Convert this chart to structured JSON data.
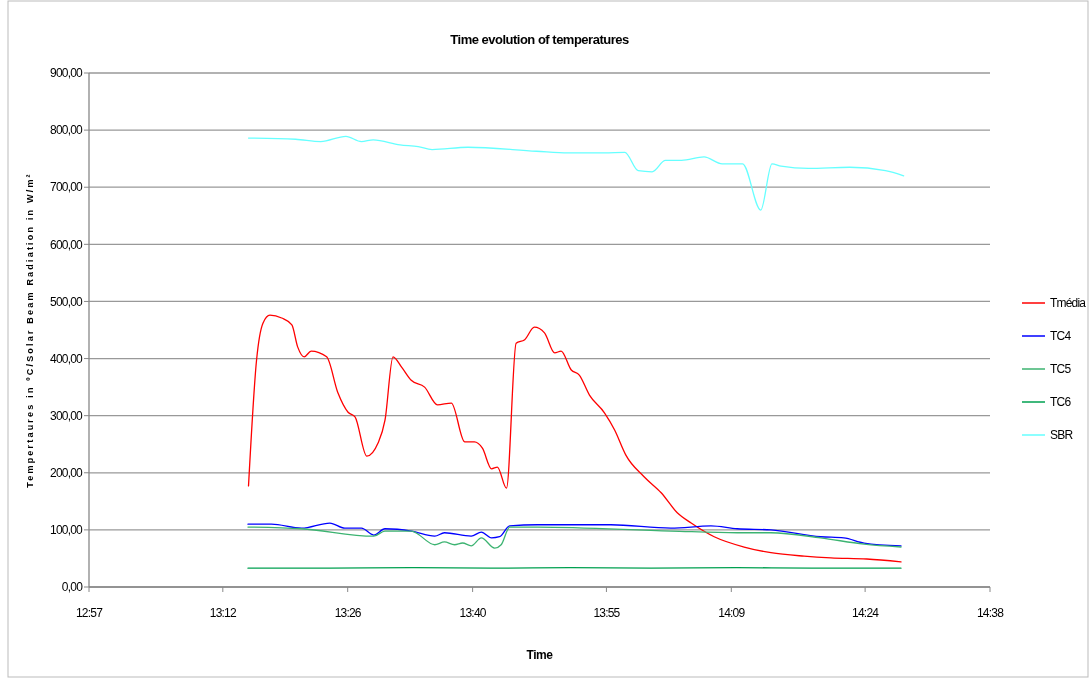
{
  "chart_data": {
    "type": "line",
    "title": "Time evolution of temperatures",
    "xlabel": "Time",
    "ylabel": "Tempertaures in ºC/Solar Beam Radiation in W/m²",
    "xlim": [
      12.95,
      14.6333
    ],
    "xticks": [
      {
        "value": 12.95,
        "label": "12:57"
      },
      {
        "value": 13.2,
        "label": "13:12"
      },
      {
        "value": 13.4333,
        "label": "13:26"
      },
      {
        "value": 13.6667,
        "label": "13:40"
      },
      {
        "value": 13.9167,
        "label": "13:55"
      },
      {
        "value": 14.15,
        "label": "14:09"
      },
      {
        "value": 14.4,
        "label": "14:24"
      },
      {
        "value": 14.6333,
        "label": "14:38"
      }
    ],
    "ylim": [
      0,
      900
    ],
    "yticks": [
      {
        "value": 0,
        "label": "0,00"
      },
      {
        "value": 100,
        "label": "100,00"
      },
      {
        "value": 200,
        "label": "200,00"
      },
      {
        "value": 300,
        "label": "300,00"
      },
      {
        "value": 400,
        "label": "400,00"
      },
      {
        "value": 500,
        "label": "500,00"
      },
      {
        "value": 600,
        "label": "600,00"
      },
      {
        "value": 700,
        "label": "700,00"
      },
      {
        "value": 800,
        "label": "800,00"
      },
      {
        "value": 900,
        "label": "900,00"
      }
    ],
    "grid": "y",
    "legend": "right",
    "series": [
      {
        "name": "Tmédia",
        "color": "#ff0000",
        "x": [
          13.248,
          13.263,
          13.275,
          13.288,
          13.31,
          13.329,
          13.34,
          13.352,
          13.365,
          13.394,
          13.415,
          13.434,
          13.447,
          13.469,
          13.49,
          13.503,
          13.518,
          13.534,
          13.552,
          13.577,
          13.601,
          13.627,
          13.652,
          13.67,
          13.685,
          13.702,
          13.713,
          13.73,
          13.748,
          13.764,
          13.782,
          13.801,
          13.82,
          13.832,
          13.851,
          13.866,
          13.885,
          13.913,
          13.932,
          13.953,
          13.987,
          14.019,
          14.049,
          14.075,
          14.118,
          14.174,
          14.224,
          14.286,
          14.336,
          14.403,
          14.467
        ],
        "values": [
          177,
          397,
          462,
          476,
          471,
          459,
          420,
          403,
          413,
          403,
          340,
          306,
          298,
          229,
          252,
          292,
          403,
          385,
          362,
          350,
          319,
          322,
          254,
          254,
          243,
          207,
          210,
          173,
          427,
          433,
          455,
          445,
          410,
          413,
          380,
          371,
          336,
          305,
          275,
          231,
          193,
          165,
          130,
          112,
          88,
          70,
          60,
          54,
          51,
          49,
          44
        ]
      },
      {
        "name": "TC4",
        "color": "#0000ff",
        "x": [
          13.247,
          13.291,
          13.347,
          13.4,
          13.428,
          13.459,
          13.482,
          13.503,
          13.552,
          13.596,
          13.614,
          13.664,
          13.683,
          13.702,
          13.717,
          13.736,
          13.788,
          13.925,
          14.037,
          14.112,
          14.161,
          14.224,
          14.317,
          14.36,
          14.398,
          14.467
        ],
        "values": [
          110,
          110,
          103,
          112,
          103,
          103,
          91,
          102,
          98,
          89,
          95,
          89,
          96,
          86,
          88,
          107,
          109,
          109,
          103,
          107,
          102,
          100,
          88,
          86,
          77,
          72
        ]
      },
      {
        "name": "TC5",
        "color": "#3cb371",
        "x": [
          13.247,
          13.347,
          13.482,
          13.503,
          13.552,
          13.596,
          13.614,
          13.633,
          13.648,
          13.664,
          13.683,
          13.708,
          13.72,
          13.736,
          13.788,
          14.037,
          14.161,
          14.224,
          14.317,
          14.398,
          14.467
        ],
        "values": [
          105,
          102,
          89,
          98,
          98,
          74,
          79,
          74,
          77,
          72,
          86,
          68,
          74,
          105,
          105,
          98,
          95,
          95,
          86,
          75,
          70
        ]
      },
      {
        "name": "TC6",
        "color": "#00a050",
        "x": [
          13.247,
          13.4,
          13.552,
          13.708,
          13.85,
          14.0,
          14.16,
          14.3,
          14.467
        ],
        "values": [
          33,
          33,
          34,
          33,
          34,
          33,
          34,
          33,
          33
        ]
      },
      {
        "name": "SBR",
        "color": "#66ffff",
        "x": [
          13.248,
          13.336,
          13.383,
          13.43,
          13.459,
          13.481,
          13.531,
          13.565,
          13.591,
          13.658,
          13.786,
          13.845,
          13.913,
          13.951,
          13.976,
          14.002,
          14.027,
          14.057,
          14.099,
          14.133,
          14.171,
          14.205,
          14.226,
          14.243,
          14.294,
          14.371,
          14.438,
          14.472
        ],
        "values": [
          786,
          784,
          780,
          789,
          780,
          783,
          774,
          771,
          766,
          770,
          763,
          760,
          760,
          761,
          729,
          727,
          747,
          747,
          753,
          741,
          741,
          660,
          741,
          737,
          733,
          735,
          729,
          720
        ]
      }
    ]
  }
}
